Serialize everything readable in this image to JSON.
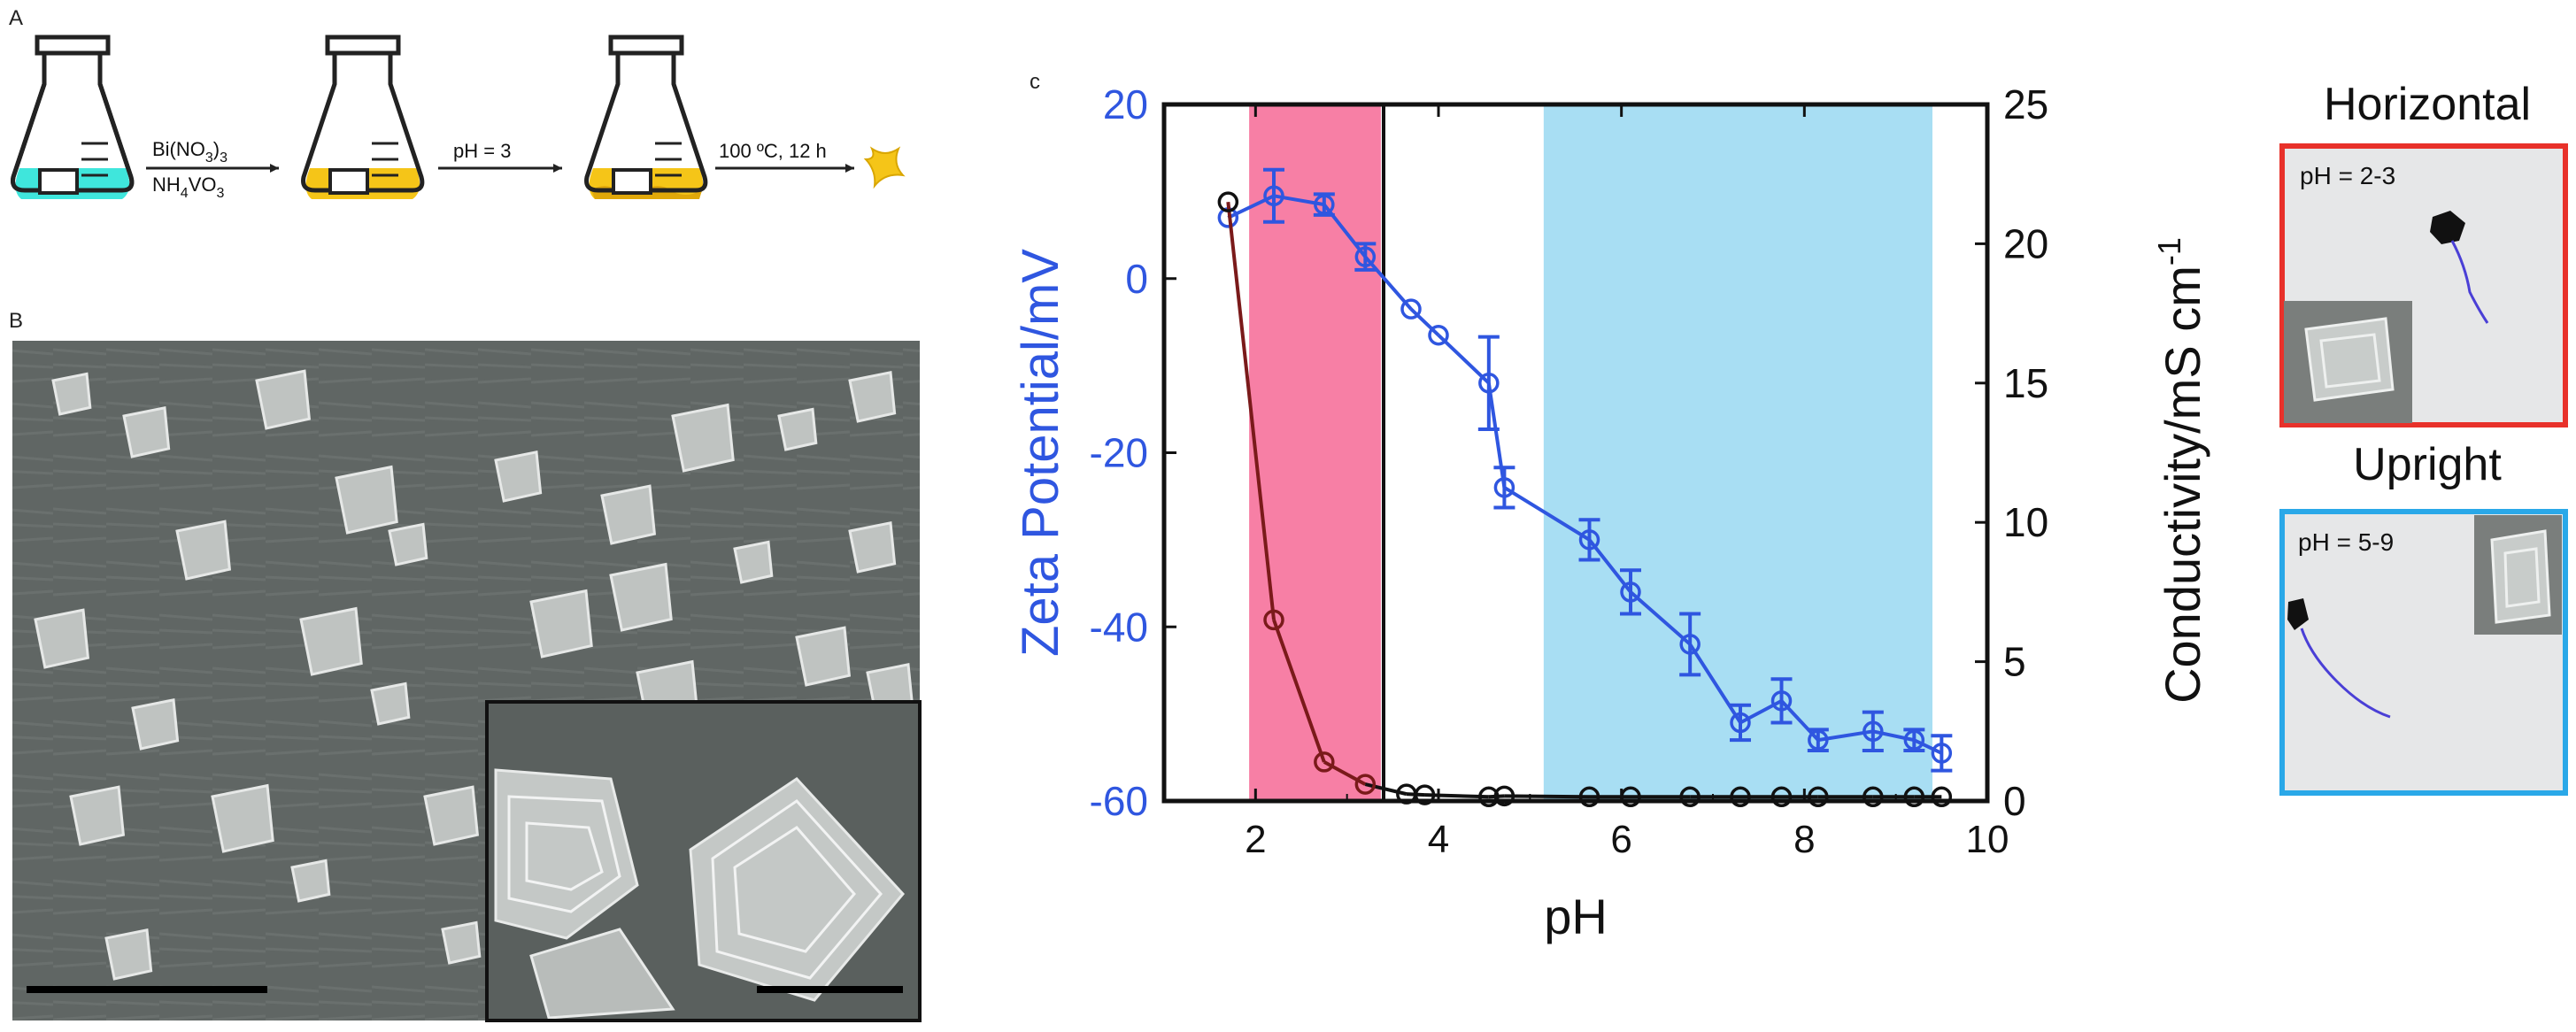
{
  "panel_a": {
    "label": "A",
    "step1": {
      "reagent_top": "Bi(NO",
      "reagent_top_sub": "3",
      "reagent_top_paren": ")",
      "reagent_top_sub2": "3",
      "reagent_bottom": "NH",
      "reagent_bottom_sub": "4",
      "reagent_bottom_rest": "VO",
      "reagent_bottom_sub2": "3"
    },
    "step2": {
      "label": "pH = 3"
    },
    "step3": {
      "label": "100 ºC, 12 h"
    },
    "colors": {
      "cyan": "#3fe6dc",
      "yellow": "#f5c518"
    }
  },
  "panel_b": {
    "label": "B"
  },
  "panel_c": {
    "label": "c"
  },
  "chart_data": {
    "type": "line",
    "xlabel": "pH",
    "xlim": [
      1,
      10
    ],
    "xticks": [
      "2",
      "4",
      "6",
      "8",
      "10"
    ],
    "ylabel_left": "Zeta Potential/mV",
    "ylim_left": [
      -60,
      20
    ],
    "yticks_left": [
      "20",
      "0",
      "-20",
      "-40",
      "-60"
    ],
    "ylabel_right": "Conductivity/mS cm",
    "ylabel_right_sup": "-1",
    "ylim_right": [
      0,
      25
    ],
    "yticks_right": [
      "25",
      "20",
      "15",
      "10",
      "5",
      "0"
    ],
    "shaded_regions": [
      {
        "name": "horizontal",
        "x_start": 1.93,
        "x_end": 3.37,
        "color": "#f77fa5"
      },
      {
        "name": "upright",
        "x_start": 5.15,
        "x_end": 9.4,
        "color": "#a8def3"
      }
    ],
    "vertical_line_x": 3.4,
    "series": [
      {
        "name": "Zeta Potential",
        "axis": "left",
        "color": "#2f56e0",
        "x": [
          1.7,
          2.2,
          2.75,
          3.2,
          3.7,
          4.0,
          4.55,
          4.72,
          5.65,
          6.1,
          6.75,
          7.3,
          7.75,
          8.15,
          8.75,
          9.2,
          9.5
        ],
        "y": [
          7,
          9.5,
          8.5,
          2.5,
          -3.5,
          -6.5,
          -12,
          -24,
          -30,
          -36,
          -42,
          -51,
          -48.5,
          -53,
          -52,
          -53,
          -54.5
        ],
        "err": [
          0,
          3.0,
          1.2,
          1.5,
          0,
          0,
          5.3,
          2.3,
          2.3,
          2.5,
          3.5,
          2.0,
          2.5,
          1.2,
          2.2,
          1.2,
          2.0
        ]
      },
      {
        "name": "Conductivity",
        "axis": "right",
        "color": "#111111",
        "color_in_red_region": "#7a1a1a",
        "x": [
          1.7,
          2.2,
          2.75,
          3.2,
          3.65,
          3.85,
          4.55,
          4.72,
          5.65,
          6.1,
          6.75,
          7.3,
          7.75,
          8.15,
          8.75,
          9.2,
          9.5
        ],
        "y": [
          21.5,
          6.5,
          1.4,
          0.6,
          0.25,
          0.22,
          0.15,
          0.18,
          0.15,
          0.15,
          0.15,
          0.15,
          0.15,
          0.15,
          0.15,
          0.15,
          0.15
        ]
      }
    ]
  },
  "orientation": {
    "horizontal": {
      "title": "Horizontal",
      "ph_label": "pH = 2-3",
      "border_color": "#e8312a"
    },
    "upright": {
      "title": "Upright",
      "ph_label": "pH = 5-9",
      "border_color": "#2aa8e8"
    }
  }
}
